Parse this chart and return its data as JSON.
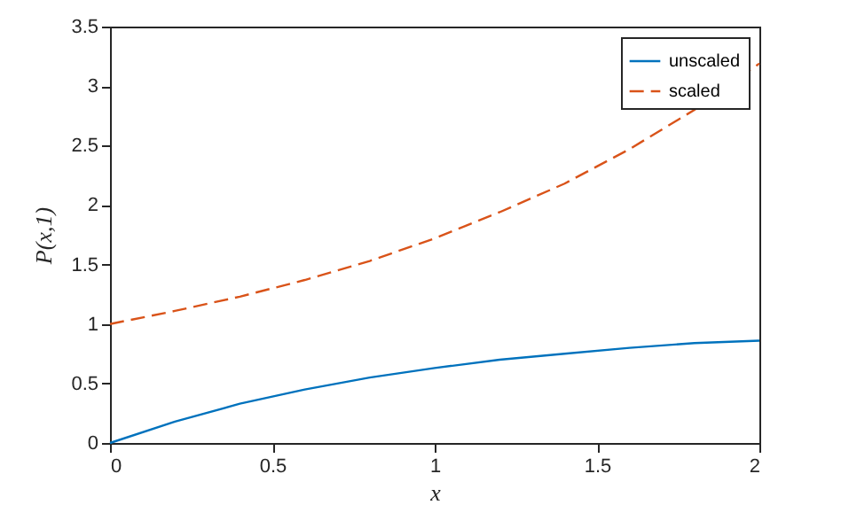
{
  "chart_data": {
    "type": "line",
    "xlabel": "x",
    "ylabel": "P(x,1)",
    "x": [
      0,
      0.2,
      0.4,
      0.6,
      0.8,
      1,
      1.2,
      1.4,
      1.6,
      1.8,
      2
    ],
    "series": [
      {
        "name": "unscaled",
        "color": "#0072bd",
        "line_style": "solid",
        "values": [
          0,
          0.18,
          0.33,
          0.45,
          0.55,
          0.63,
          0.7,
          0.75,
          0.8,
          0.84,
          0.86
        ]
      },
      {
        "name": "scaled",
        "color": "#d95319",
        "line_style": "dashed",
        "values": [
          1,
          1.11,
          1.23,
          1.37,
          1.53,
          1.72,
          1.94,
          2.18,
          2.47,
          2.8,
          3.19
        ]
      }
    ],
    "xlim": [
      0,
      2
    ],
    "xticks": [
      0,
      0.5,
      1,
      1.5,
      2
    ],
    "ylim": [
      0,
      3.5
    ],
    "yticks": [
      0,
      0.5,
      1,
      1.5,
      2,
      2.5,
      3,
      3.5
    ],
    "grid": false,
    "legend": "top right",
    "marker": "none"
  }
}
